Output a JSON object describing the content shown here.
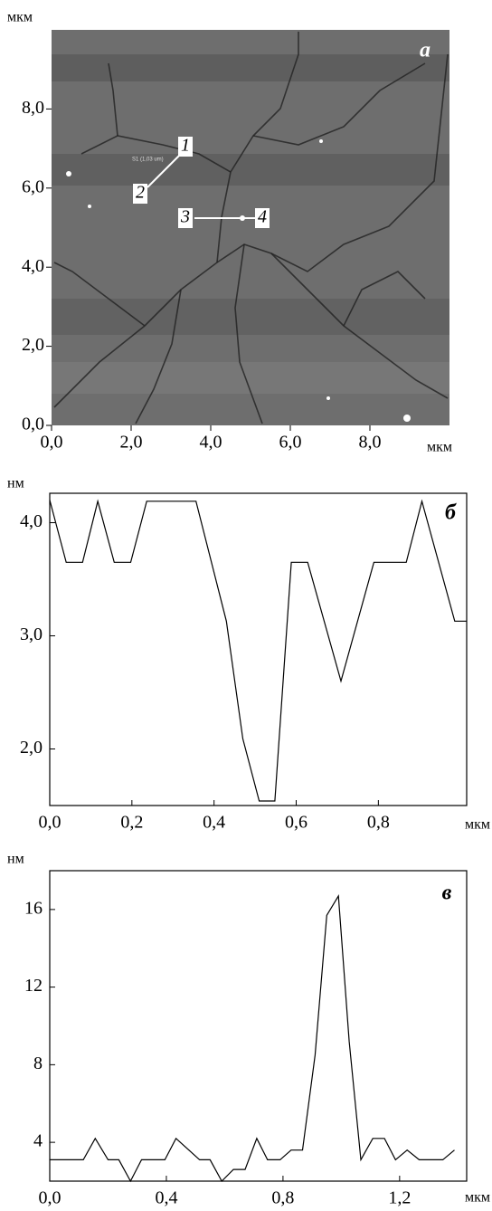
{
  "chart_data": [
    {
      "type": "image",
      "panel_label": "а",
      "x_label": "мкм",
      "y_label": "мкм",
      "xlim": [
        0,
        10
      ],
      "ylim": [
        0,
        10
      ],
      "xticks": [
        {
          "value": 0,
          "label": "0,0"
        },
        {
          "value": 2,
          "label": "2,0"
        },
        {
          "value": 4,
          "label": "4,0"
        },
        {
          "value": 6,
          "label": "6,0"
        },
        {
          "value": 8,
          "label": "8,0"
        }
      ],
      "yticks": [
        {
          "value": 0,
          "label": "0,0"
        },
        {
          "value": 2,
          "label": "2,0"
        },
        {
          "value": 4,
          "label": "4,0"
        },
        {
          "value": 6,
          "label": "6,0"
        },
        {
          "value": 8,
          "label": "8,0"
        }
      ],
      "annotations": [
        "1",
        "2",
        "3",
        "4",
        "S1 (1,03 um)"
      ]
    },
    {
      "type": "line",
      "panel_label": "б",
      "x_label": "мкм",
      "y_label": "нм",
      "color": "#000000",
      "xlim": [
        0,
        1.015
      ],
      "ylim": [
        1.5,
        4.26
      ],
      "xticks": [
        {
          "value": 0,
          "label": "0,0"
        },
        {
          "value": 0.2,
          "label": "0,2"
        },
        {
          "value": 0.4,
          "label": "0,4"
        },
        {
          "value": 0.6,
          "label": "0,6"
        },
        {
          "value": 0.8,
          "label": "0,8"
        }
      ],
      "yticks": [
        {
          "value": 2,
          "label": "2,0"
        },
        {
          "value": 3,
          "label": "3,0"
        },
        {
          "value": 4,
          "label": "4,0"
        }
      ],
      "x": [
        0,
        0.04,
        0.08,
        0.117,
        0.157,
        0.197,
        0.236,
        0.356,
        0.43,
        0.47,
        0.51,
        0.548,
        0.588,
        0.628,
        0.709,
        0.789,
        0.868,
        0.906,
        0.986,
        1.014
      ],
      "values": [
        4.2,
        3.65,
        3.65,
        4.19,
        3.65,
        3.65,
        4.19,
        4.19,
        3.13,
        2.09,
        1.54,
        1.54,
        3.65,
        3.65,
        2.6,
        3.65,
        3.65,
        4.19,
        3.13,
        3.13
      ]
    },
    {
      "type": "line",
      "panel_label": "в",
      "x_label": "мкм",
      "y_label": "нм",
      "color": "#000000",
      "xlim": [
        0,
        1.43
      ],
      "ylim": [
        2,
        18
      ],
      "xticks": [
        {
          "value": 0,
          "label": "0,0"
        },
        {
          "value": 0.4,
          "label": "0,4"
        },
        {
          "value": 0.8,
          "label": "0,8"
        },
        {
          "value": 1.2,
          "label": "1,2"
        }
      ],
      "yticks": [
        4,
        8,
        12,
        16
      ],
      "x": [
        0,
        0.115,
        0.156,
        0.2,
        0.237,
        0.277,
        0.315,
        0.395,
        0.433,
        0.514,
        0.55,
        0.59,
        0.63,
        0.67,
        0.71,
        0.747,
        0.79,
        0.828,
        0.867,
        0.91,
        0.95,
        0.99,
        1.027,
        1.067,
        1.108,
        1.148,
        1.186,
        1.226,
        1.267,
        1.348,
        1.388
      ],
      "values": [
        3.1,
        3.1,
        4.2,
        3.1,
        3.1,
        2.0,
        3.1,
        3.1,
        4.2,
        3.1,
        3.1,
        2.0,
        2.6,
        2.6,
        4.2,
        3.1,
        3.1,
        3.6,
        3.6,
        8.5,
        15.7,
        16.7,
        9.2,
        3.1,
        4.2,
        4.2,
        3.1,
        3.6,
        3.1,
        3.1,
        3.6
      ]
    }
  ]
}
